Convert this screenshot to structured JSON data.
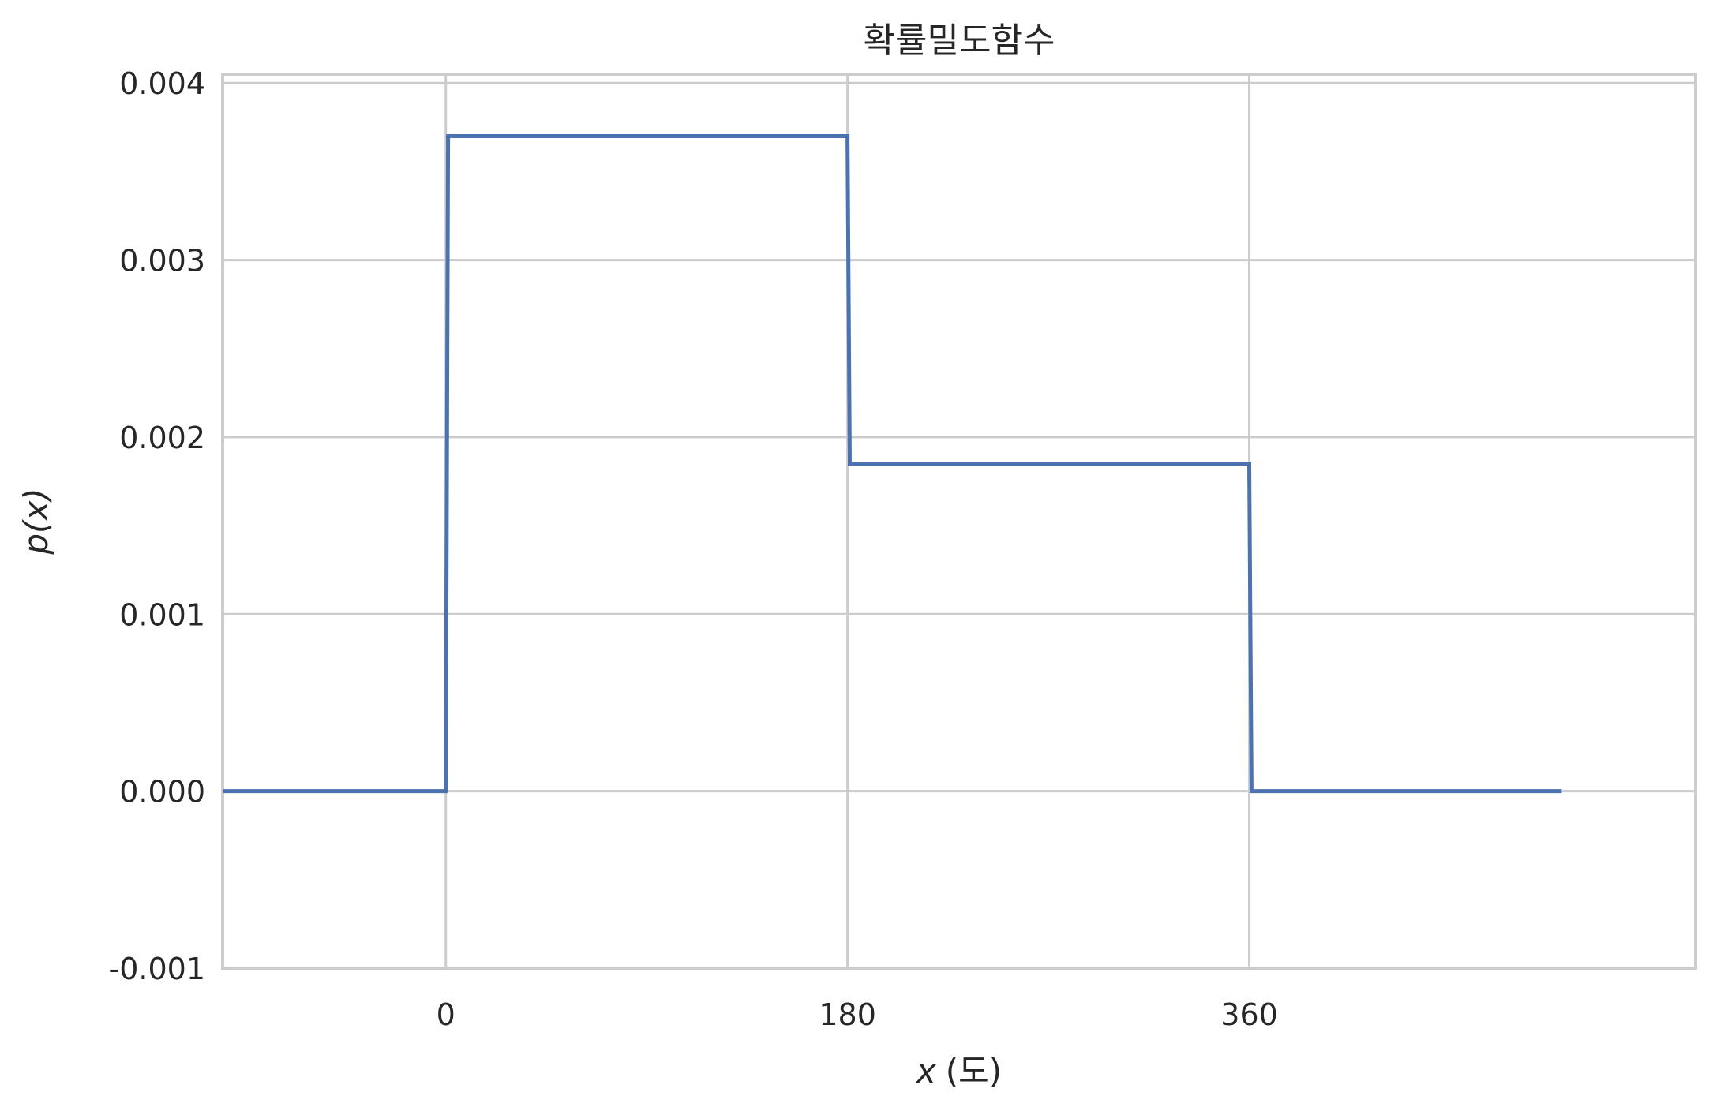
{
  "chart_data": {
    "type": "line",
    "title": "확률밀도함수",
    "xlabel_var": "x",
    "xlabel_unit": "(도)",
    "ylabel": "p(x)",
    "xlim": [
      -100,
      560
    ],
    "ylim": [
      -0.001,
      0.00405
    ],
    "x_ticks": [
      {
        "value": 0,
        "label": "0"
      },
      {
        "value": 180,
        "label": "180"
      },
      {
        "value": 360,
        "label": "360"
      }
    ],
    "y_ticks": [
      {
        "value": -0.001,
        "label": "-0.001"
      },
      {
        "value": 0.0,
        "label": "0.000"
      },
      {
        "value": 0.001,
        "label": "0.001"
      },
      {
        "value": 0.002,
        "label": "0.002"
      },
      {
        "value": 0.003,
        "label": "0.003"
      },
      {
        "value": 0.004,
        "label": "0.004"
      }
    ],
    "grid": true,
    "series": [
      {
        "color": "#4c72b0",
        "x": [
          -100,
          0,
          1,
          180,
          181,
          360,
          361,
          500
        ],
        "y": [
          0,
          0,
          0.0037,
          0.0037,
          0.00185,
          0.00185,
          0,
          0
        ]
      }
    ]
  }
}
